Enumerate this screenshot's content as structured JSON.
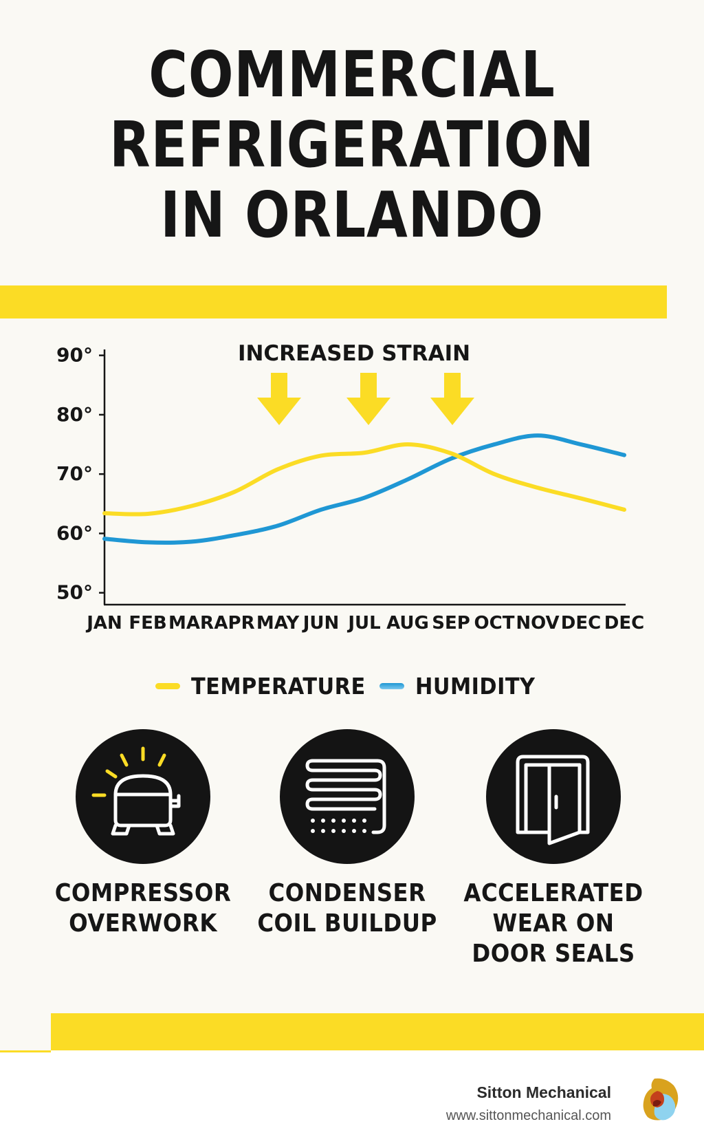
{
  "title": {
    "line1": "COMMERCIAL",
    "line2": "REFRIGERATION",
    "line3": "IN ORLANDO"
  },
  "colors": {
    "accent_yellow": "#fbdc25",
    "humidity_blue": "#1f97d4",
    "dark": "#141414",
    "background": "#faf9f4"
  },
  "chart_data": {
    "type": "line",
    "annotation": "INCREASED STRAIN",
    "annotation_categories": [
      "MAY",
      "JUL",
      "SEP"
    ],
    "categories": [
      "JAN",
      "FEB",
      "MAR",
      "APR",
      "MAY",
      "JUN",
      "JUL",
      "AUG",
      "SEP",
      "OCT",
      "NOV",
      "DEC",
      "DEC"
    ],
    "y_ticks": [
      {
        "value": 90,
        "label": "90°"
      },
      {
        "value": 80,
        "label": "80°"
      },
      {
        "value": 70,
        "label": "70°"
      },
      {
        "value": 60,
        "label": "60°"
      },
      {
        "value": 50,
        "label": "50°"
      }
    ],
    "ylim": [
      48,
      91
    ],
    "grid": false,
    "legend_position": "bottom-center",
    "series": [
      {
        "name": "TEMPERATURE",
        "color": "#fbdc25",
        "values": [
          63.4,
          63.3,
          64.6,
          67.0,
          70.8,
          73.1,
          73.6,
          75.0,
          73.5,
          70.0,
          67.7,
          65.9,
          64.0
        ]
      },
      {
        "name": "HUMIDITY",
        "color": "#1f97d4",
        "legend_swatch_color": "#7cc8ee",
        "values": [
          59.1,
          58.5,
          58.6,
          59.7,
          61.3,
          64.0,
          66.0,
          69.1,
          72.6,
          75.0,
          76.5,
          75.0,
          73.2
        ]
      }
    ]
  },
  "legend": {
    "temperature_label": "TEMPERATURE",
    "humidity_label": "HUMIDITY"
  },
  "impacts": [
    {
      "icon": "compressor-icon",
      "line1": "COMPRESSOR",
      "line2": "OVERWORK",
      "line3": ""
    },
    {
      "icon": "condenser-coil-icon",
      "line1": "CONDENSER",
      "line2": "COIL BUILDUP",
      "line3": ""
    },
    {
      "icon": "door-icon",
      "line1": "ACCELERATED",
      "line2": "WEAR ON",
      "line3": "DOOR SEALS"
    }
  ],
  "footer": {
    "brand_name": "Sitton Mechanical",
    "brand_url": "www.sittonmechanical.com"
  }
}
